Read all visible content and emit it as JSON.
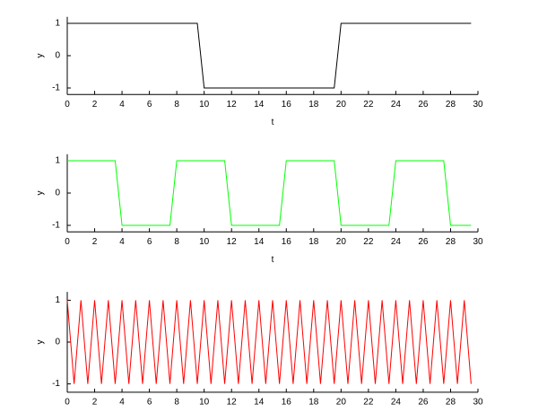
{
  "chart_data": [
    {
      "type": "line",
      "xlabel": "t",
      "ylabel": "y",
      "color": "#000000",
      "x": [
        0,
        9.5,
        10,
        19.5,
        20,
        29.5
      ],
      "values": [
        1,
        1,
        -1,
        -1,
        1,
        1
      ],
      "xlim": [
        0,
        30
      ],
      "xticks": [
        0,
        2,
        4,
        6,
        8,
        10,
        12,
        14,
        16,
        18,
        20,
        22,
        24,
        26,
        28,
        30
      ],
      "ylim": [
        -1.2,
        1.2
      ],
      "yticks": [
        -1,
        0,
        1
      ]
    },
    {
      "type": "line",
      "xlabel": "t",
      "ylabel": "y",
      "color": "#00ff00",
      "x": [
        0,
        3.5,
        4,
        7.5,
        8,
        11.5,
        12,
        15.5,
        16,
        19.5,
        20,
        23.5,
        24,
        27.5,
        28,
        29.5
      ],
      "values": [
        1,
        1,
        -1,
        -1,
        1,
        1,
        -1,
        -1,
        1,
        1,
        -1,
        -1,
        1,
        1,
        -1,
        -1
      ],
      "xlim": [
        0,
        30
      ],
      "xticks": [
        0,
        2,
        4,
        6,
        8,
        10,
        12,
        14,
        16,
        18,
        20,
        22,
        24,
        26,
        28,
        30
      ],
      "ylim": [
        -1.2,
        1.2
      ],
      "yticks": [
        -1,
        0,
        1
      ]
    },
    {
      "type": "line",
      "ylabel": "y",
      "color": "#ff0000",
      "x": [
        0,
        0.5,
        1,
        1.5,
        2,
        2.5,
        3,
        3.5,
        4,
        4.5,
        5,
        5.5,
        6,
        6.5,
        7,
        7.5,
        8,
        8.5,
        9,
        9.5,
        10,
        10.5,
        11,
        11.5,
        12,
        12.5,
        13,
        13.5,
        14,
        14.5,
        15,
        15.5,
        16,
        16.5,
        17,
        17.5,
        18,
        18.5,
        19,
        19.5,
        20,
        20.5,
        21,
        21.5,
        22,
        22.5,
        23,
        23.5,
        24,
        24.5,
        25,
        25.5,
        26,
        26.5,
        27,
        27.5,
        28,
        28.5,
        29,
        29.5
      ],
      "values": [
        1,
        -1,
        1,
        -1,
        1,
        -1,
        1,
        -1,
        1,
        -1,
        1,
        -1,
        1,
        -1,
        1,
        -1,
        1,
        -1,
        1,
        -1,
        1,
        -1,
        1,
        -1,
        1,
        -1,
        1,
        -1,
        1,
        -1,
        1,
        -1,
        1,
        -1,
        1,
        -1,
        1,
        -1,
        1,
        -1,
        1,
        -1,
        1,
        -1,
        1,
        -1,
        1,
        -1,
        1,
        -1,
        1,
        -1,
        1,
        -1,
        1,
        -1,
        1,
        -1,
        1,
        -1
      ],
      "xlim": [
        0,
        30
      ],
      "xticks": [
        0,
        2,
        4,
        6,
        8,
        10,
        12,
        14,
        16,
        18,
        20,
        22,
        24,
        26,
        28,
        30
      ],
      "ylim": [
        -1.2,
        1.2
      ],
      "yticks": [
        -1,
        0,
        1
      ]
    }
  ]
}
